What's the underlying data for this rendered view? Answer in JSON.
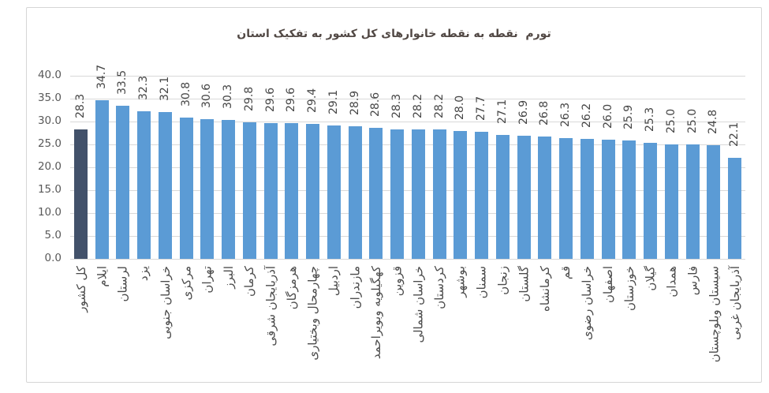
{
  "chart_data": {
    "type": "bar",
    "title": "تورم  نقطه به نقطه خانوارهای کل کشور به تفکیک استان",
    "title_color": "#514844",
    "categories": [
      "کل کشور",
      "ایلام",
      "لرستان",
      "یزد",
      "خراسان جنوبی",
      "مرکزی",
      "تهران",
      "البرز",
      "کرمان",
      "آذربایجان شرقی",
      "هرمزگان",
      "چهارمحال وبختیاری",
      "اردبیل",
      "مازندران",
      "کهگیلویه وبویراحمد",
      "قزوین",
      "خراسان شمالی",
      "کردستان",
      "بوشهر",
      "سمنان",
      "زنجان",
      "گلستان",
      "کرمانشاه",
      "قم",
      "خراسان رضوی",
      "اصفهان",
      "خوزستان",
      "گیلان",
      "همدان",
      "فارس",
      "سیستان وبلوچستان",
      "آذربایجان غربی"
    ],
    "values": [
      28.3,
      34.7,
      33.5,
      32.3,
      32.1,
      30.8,
      30.6,
      30.3,
      29.8,
      29.6,
      29.6,
      29.4,
      29.1,
      28.9,
      28.6,
      28.3,
      28.2,
      28.2,
      28.0,
      27.7,
      27.1,
      26.9,
      26.8,
      26.3,
      26.2,
      26.0,
      25.9,
      25.3,
      25.0,
      25.0,
      24.8,
      22.1
    ],
    "ylim": [
      0,
      40
    ],
    "yticks": [
      "40.0",
      "35.0",
      "30.0",
      "25.0",
      "20.0",
      "15.0",
      "10.0",
      "5.0",
      "0.0"
    ],
    "grid": true,
    "bar_color": "#5b9bd5",
    "highlight_color": "#42516a",
    "highlight_index": 0,
    "axis_label_color": "#4b4b4b",
    "value_label_color": "#464646",
    "gridline_color": "#d9d9d9"
  }
}
